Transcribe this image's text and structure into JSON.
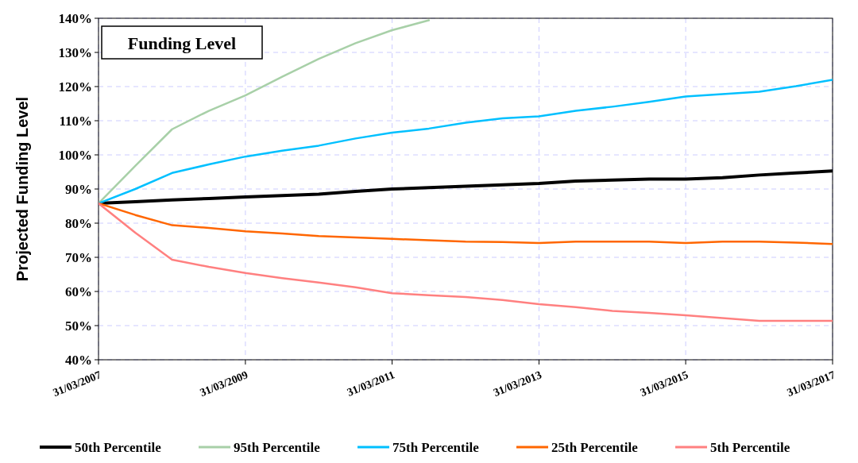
{
  "chart_data": {
    "type": "line",
    "title": "Funding Level",
    "ylabel": "Projected Funding Level",
    "x": [
      "2007-03-31",
      "2007-09-30",
      "2008-03-31",
      "2008-09-30",
      "2009-03-31",
      "2009-09-30",
      "2010-03-31",
      "2010-09-30",
      "2011-03-31",
      "2011-09-30",
      "2012-03-31",
      "2012-09-30",
      "2013-03-31",
      "2013-09-30",
      "2014-03-31",
      "2014-09-30",
      "2015-03-31",
      "2015-09-30",
      "2016-03-31",
      "2016-09-30",
      "2017-03-31"
    ],
    "series": [
      {
        "name": "50th Percentile",
        "color": "#000000",
        "values": [
          85.8,
          86.3,
          86.8,
          87.2,
          87.7,
          88.1,
          88.5,
          89.3,
          90,
          90.4,
          90.8,
          91.2,
          91.6,
          92.3,
          92.6,
          92.9,
          92.9,
          93.3,
          94.1,
          94.7,
          95.3
        ]
      },
      {
        "name": "95th Percentile",
        "color": "#a8d0a8",
        "values": [
          85.8,
          96.8,
          107.5,
          112.9,
          117.4,
          122.9,
          128.1,
          132.7,
          136.5,
          139.4,
          null,
          null,
          null,
          null,
          null,
          null,
          null,
          null,
          null,
          null,
          null
        ]
      },
      {
        "name": "75th Percentile",
        "color": "#00c0ff",
        "values": [
          85.8,
          90,
          94.7,
          97.2,
          99.5,
          101.2,
          102.7,
          104.8,
          106.5,
          107.7,
          109.4,
          110.7,
          111.3,
          112.9,
          114.1,
          115.5,
          117.1,
          117.8,
          118.5,
          120.1,
          122
        ]
      },
      {
        "name": "25th Percentile",
        "color": "#ff6600",
        "values": [
          85.8,
          82.4,
          79.4,
          78.6,
          77.6,
          77,
          76.2,
          75.8,
          75.4,
          75,
          74.6,
          74.5,
          74.2,
          74.6,
          74.6,
          74.6,
          74.2,
          74.6,
          74.6,
          74.3,
          73.9
        ]
      },
      {
        "name": "5th Percentile",
        "color": "#ff8080",
        "values": [
          85.8,
          77.2,
          69.3,
          67.2,
          65.4,
          63.9,
          62.6,
          61.2,
          59.5,
          58.9,
          58.4,
          57.5,
          56.3,
          55.4,
          54.3,
          53.7,
          53,
          52.2,
          51.4,
          51.4,
          51.4
        ]
      }
    ],
    "xlim": [
      "2007-03-31",
      "2017-03-31"
    ],
    "xticks": [
      {
        "value": "2007-03-31",
        "label": "31/03/2007"
      },
      {
        "value": "2009-03-31",
        "label": "31/03/2009"
      },
      {
        "value": "2011-03-31",
        "label": "31/03/2011"
      },
      {
        "value": "2013-03-31",
        "label": "31/03/2013"
      },
      {
        "value": "2015-03-31",
        "label": "31/03/2015"
      },
      {
        "value": "2017-03-31",
        "label": "31/03/2017"
      }
    ],
    "ylim": [
      40,
      140
    ],
    "yticks": [
      {
        "value": 40,
        "label": "40%"
      },
      {
        "value": 50,
        "label": "50%"
      },
      {
        "value": 60,
        "label": "60%"
      },
      {
        "value": 70,
        "label": "70%"
      },
      {
        "value": 80,
        "label": "80%"
      },
      {
        "value": 90,
        "label": "90%"
      },
      {
        "value": 100,
        "label": "100%"
      },
      {
        "value": 110,
        "label": "110%"
      },
      {
        "value": 120,
        "label": "120%"
      },
      {
        "value": 130,
        "label": "130%"
      },
      {
        "value": 140,
        "label": "140%"
      }
    ],
    "grid": true,
    "legend": "bottom",
    "marker": "none",
    "line_style": "solid"
  }
}
